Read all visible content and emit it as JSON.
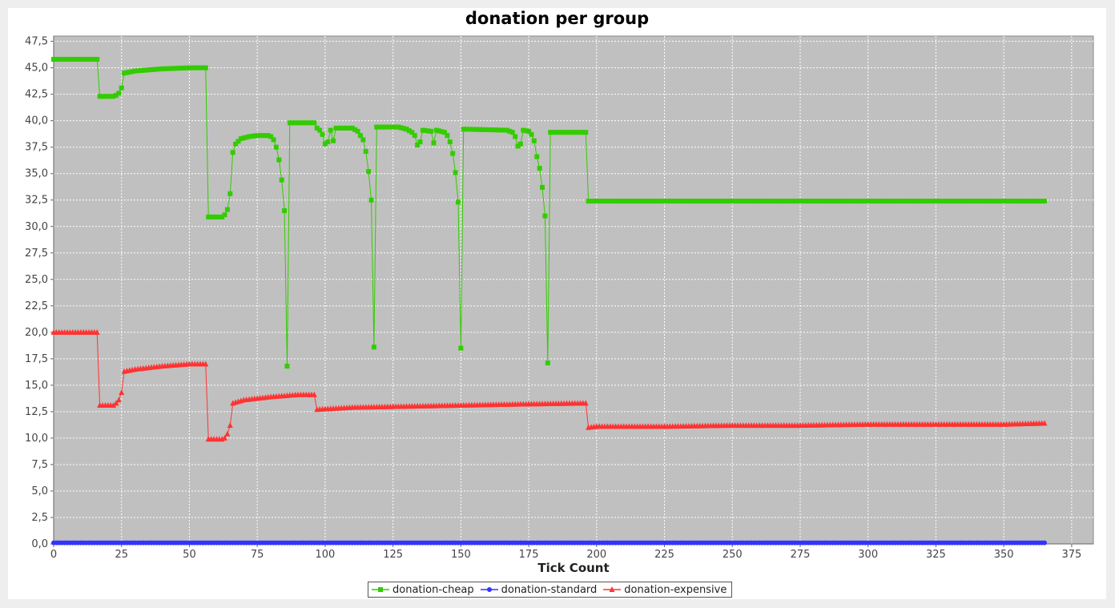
{
  "chart_data": {
    "type": "line",
    "title": "donation per group",
    "xlabel": "Tick Count",
    "ylabel": "",
    "xlim": [
      0,
      383
    ],
    "ylim": [
      0,
      48
    ],
    "x_ticks": [
      0,
      25,
      50,
      75,
      100,
      125,
      150,
      175,
      200,
      225,
      250,
      275,
      300,
      325,
      350,
      375
    ],
    "y_ticks": [
      0,
      2.5,
      5,
      7.5,
      10,
      12.5,
      15,
      17.5,
      20,
      22.5,
      25,
      27.5,
      30,
      32.5,
      35,
      37.5,
      40,
      42.5,
      45,
      47.5
    ],
    "y_tick_labels": [
      "0,0",
      "2,5",
      "5,0",
      "7,5",
      "10,0",
      "12,5",
      "15,0",
      "17,5",
      "20,0",
      "22,5",
      "25,0",
      "27,5",
      "30,0",
      "32,5",
      "35,0",
      "37,5",
      "40,0",
      "42,5",
      "45,0",
      "47,5"
    ],
    "grid": true,
    "legend_position": "bottom-center",
    "background_color": "#c0c0c0",
    "series": [
      {
        "name": "donation-cheap",
        "color": "#33cc00",
        "marker": "square",
        "points": [
          [
            0,
            45.8
          ],
          [
            16,
            45.8
          ],
          [
            17,
            42.3
          ],
          [
            22,
            42.3
          ],
          [
            23,
            42.4
          ],
          [
            24,
            42.6
          ],
          [
            25,
            43.1
          ],
          [
            26,
            44.5
          ],
          [
            30,
            44.7
          ],
          [
            40,
            44.9
          ],
          [
            50,
            45.0
          ],
          [
            56,
            45.0
          ],
          [
            57,
            30.9
          ],
          [
            62,
            30.9
          ],
          [
            63,
            31.1
          ],
          [
            64,
            31.6
          ],
          [
            65,
            33.1
          ],
          [
            66,
            37.0
          ],
          [
            67,
            37.8
          ],
          [
            69,
            38.3
          ],
          [
            72,
            38.5
          ],
          [
            75,
            38.6
          ],
          [
            79,
            38.6
          ],
          [
            80,
            38.5
          ],
          [
            81,
            38.2
          ],
          [
            82,
            37.5
          ],
          [
            83,
            36.3
          ],
          [
            84,
            34.4
          ],
          [
            85,
            31.5
          ],
          [
            86,
            16.8
          ],
          [
            87,
            39.8
          ],
          [
            96,
            39.8
          ],
          [
            97,
            39.3
          ],
          [
            98,
            39.1
          ],
          [
            99,
            38.7
          ],
          [
            100,
            37.8
          ],
          [
            101,
            38.0
          ],
          [
            102,
            39.1
          ],
          [
            103,
            38.1
          ],
          [
            104,
            39.3
          ],
          [
            110,
            39.3
          ],
          [
            112,
            39.0
          ],
          [
            113,
            38.6
          ],
          [
            114,
            38.2
          ],
          [
            115,
            37.1
          ],
          [
            116,
            35.2
          ],
          [
            117,
            32.5
          ],
          [
            118,
            18.6
          ],
          [
            119,
            39.4
          ],
          [
            127,
            39.4
          ],
          [
            130,
            39.2
          ],
          [
            132,
            38.9
          ],
          [
            133,
            38.6
          ],
          [
            134,
            37.7
          ],
          [
            135,
            38.0
          ],
          [
            136,
            39.1
          ],
          [
            139,
            39.0
          ],
          [
            140,
            37.9
          ],
          [
            141,
            39.1
          ],
          [
            144,
            38.9
          ],
          [
            145,
            38.6
          ],
          [
            146,
            38.0
          ],
          [
            147,
            36.9
          ],
          [
            148,
            35.1
          ],
          [
            149,
            32.3
          ],
          [
            150,
            18.5
          ],
          [
            151,
            39.2
          ],
          [
            167,
            39.1
          ],
          [
            169,
            38.9
          ],
          [
            170,
            38.5
          ],
          [
            171,
            37.6
          ],
          [
            172,
            37.8
          ],
          [
            173,
            39.1
          ],
          [
            175,
            39.0
          ],
          [
            176,
            38.7
          ],
          [
            177,
            38.1
          ],
          [
            178,
            36.6
          ],
          [
            179,
            35.5
          ],
          [
            180,
            33.7
          ],
          [
            181,
            31.0
          ],
          [
            182,
            17.1
          ],
          [
            183,
            38.9
          ],
          [
            196,
            38.9
          ],
          [
            197,
            32.4
          ],
          [
            365,
            32.4
          ]
        ]
      },
      {
        "name": "donation-standard",
        "color": "#3333ff",
        "marker": "circle",
        "points": [
          [
            0,
            0.1
          ],
          [
            365,
            0.1
          ]
        ]
      },
      {
        "name": "donation-expensive",
        "color": "#ff3333",
        "marker": "triangle",
        "points": [
          [
            0,
            20.0
          ],
          [
            16,
            20.0
          ],
          [
            17,
            13.1
          ],
          [
            22,
            13.1
          ],
          [
            23,
            13.3
          ],
          [
            24,
            13.6
          ],
          [
            25,
            14.3
          ],
          [
            26,
            16.3
          ],
          [
            30,
            16.5
          ],
          [
            40,
            16.8
          ],
          [
            50,
            17.0
          ],
          [
            56,
            17.0
          ],
          [
            57,
            9.9
          ],
          [
            62,
            9.9
          ],
          [
            63,
            10.0
          ],
          [
            64,
            10.4
          ],
          [
            65,
            11.2
          ],
          [
            66,
            13.3
          ],
          [
            70,
            13.6
          ],
          [
            80,
            13.9
          ],
          [
            90,
            14.1
          ],
          [
            96,
            14.1
          ],
          [
            97,
            12.7
          ],
          [
            110,
            12.9
          ],
          [
            130,
            13.0
          ],
          [
            150,
            13.1
          ],
          [
            170,
            13.2
          ],
          [
            196,
            13.3
          ],
          [
            197,
            11.0
          ],
          [
            200,
            11.1
          ],
          [
            225,
            11.1
          ],
          [
            250,
            11.2
          ],
          [
            275,
            11.2
          ],
          [
            300,
            11.3
          ],
          [
            325,
            11.3
          ],
          [
            350,
            11.3
          ],
          [
            365,
            11.4
          ]
        ]
      }
    ]
  }
}
